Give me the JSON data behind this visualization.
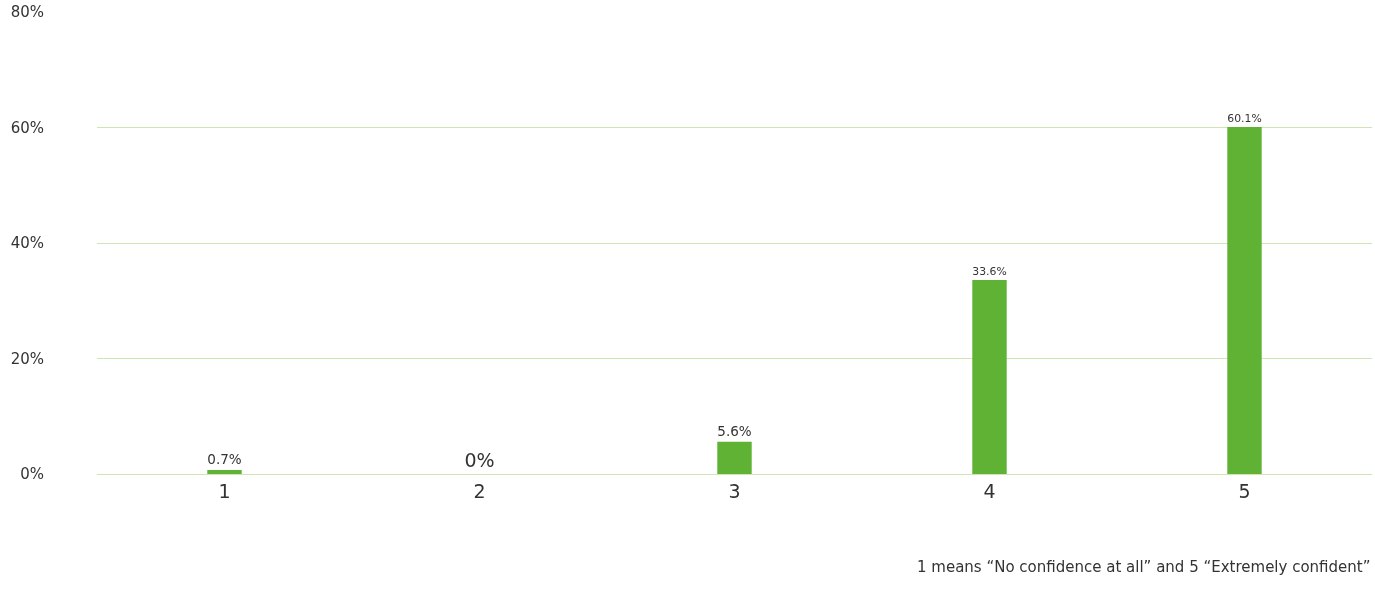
{
  "chart_data": {
    "type": "bar",
    "categories": [
      "1",
      "2",
      "3",
      "4",
      "5"
    ],
    "values": [
      0.7,
      0,
      5.6,
      33.6,
      60.1
    ],
    "value_labels": [
      "0.7%",
      "0%",
      "5.6%",
      "33.6%",
      "60.1%"
    ],
    "color": "#5fb233",
    "ylim": [
      0,
      80
    ],
    "yticks": [
      {
        "value": 0,
        "label": "0%"
      },
      {
        "value": 20,
        "label": "20%"
      },
      {
        "value": 40,
        "label": "40%"
      },
      {
        "value": 60,
        "label": "60%"
      },
      {
        "value": 80,
        "label": "80%"
      }
    ],
    "grid": "y",
    "annotations": [
      "1 means “No confidence at all” and 5 “Extremely confident”"
    ]
  }
}
